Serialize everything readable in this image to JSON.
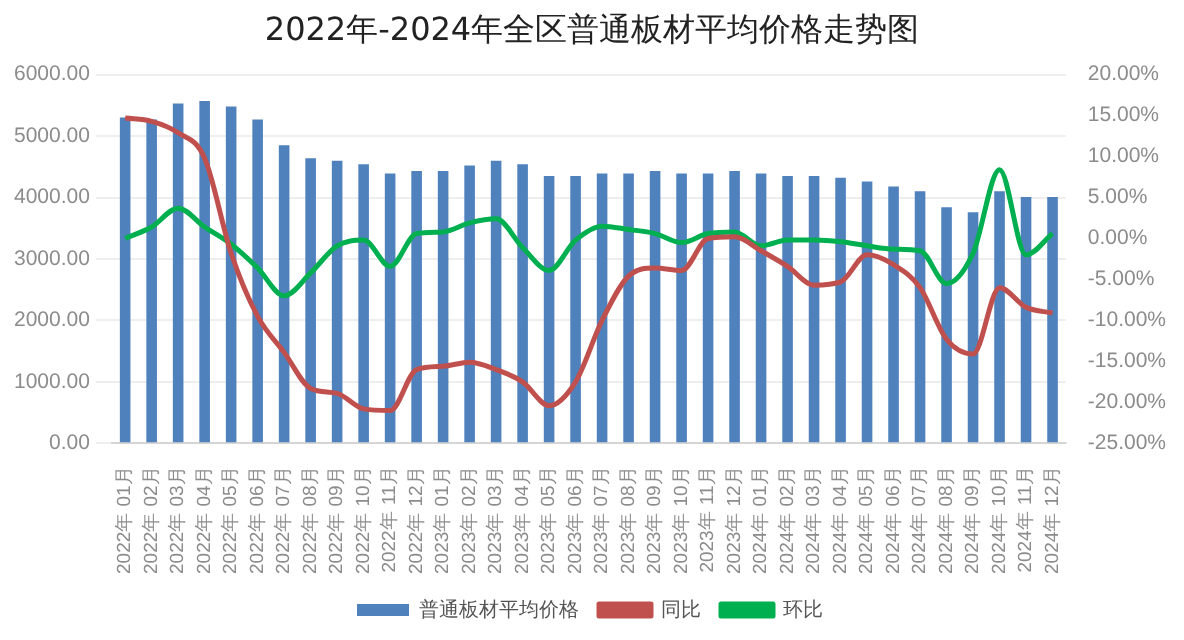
{
  "chart_data": {
    "type": "bar",
    "title": "2022年-2024年全区普通板材平均价格走势图",
    "categories": [
      "2022年 01月",
      "2022年 02月",
      "2022年 03月",
      "2022年 04月",
      "2022年 05月",
      "2022年 06月",
      "2022年 07月",
      "2022年 08月",
      "2022年 09月",
      "2022年 10月",
      "2022年 11月",
      "2022年 12月",
      "2023年 01月",
      "2023年 02月",
      "2023年 03月",
      "2023年 04月",
      "2023年 05月",
      "2023年 06月",
      "2023年 07月",
      "2023年 08月",
      "2023年 09月",
      "2023年 10月",
      "2023年 11月",
      "2023年 12月",
      "2024年 01月",
      "2024年 02月",
      "2024年 03月",
      "2024年 04月",
      "2024年 05月",
      "2024年 06月",
      "2024年 07月",
      "2024年 08月",
      "2024年 09月",
      "2024年 10月",
      "2024年 11月",
      "2024年 12月"
    ],
    "series": [
      {
        "name": "普通板材平均价格",
        "color": "#4f81bd",
        "values": [
          5300,
          5270,
          5530,
          5570,
          5480,
          5270,
          4850,
          4640,
          4600,
          4540,
          4390,
          4430,
          4430,
          4520,
          4600,
          4540,
          4350,
          4350,
          4390,
          4390,
          4430,
          4390,
          4390,
          4430,
          4390,
          4350,
          4350,
          4320,
          4260,
          4180,
          4100,
          3840,
          3760,
          4100,
          4010,
          4010
        ]
      },
      {
        "name": "同比",
        "type": "line",
        "axis": "y2",
        "color": "#c0504d",
        "values": [
          14.7,
          14.3,
          12.9,
          9.8,
          -1.8,
          -9.5,
          -13.9,
          -18.3,
          -18.9,
          -20.8,
          -21.0,
          -16.0,
          -15.6,
          -15.1,
          -16.0,
          -17.5,
          -20.4,
          -17.5,
          -10.0,
          -4.6,
          -3.6,
          -3.9,
          0.0,
          0.2,
          -1.5,
          -3.4,
          -5.7,
          -5.3,
          -2.0,
          -3.2,
          -6.0,
          -12.3,
          -14.1,
          -6.0,
          -8.4,
          -9.1
        ]
      },
      {
        "name": "环比",
        "type": "line",
        "axis": "y2",
        "color": "#00b050",
        "values": [
          0.0,
          1.4,
          3.7,
          1.4,
          -0.7,
          -3.6,
          -7.0,
          -4.2,
          -0.9,
          -0.2,
          -3.4,
          0.6,
          0.8,
          1.9,
          2.4,
          -1.1,
          -3.9,
          -0.2,
          1.5,
          1.1,
          0.6,
          -0.5,
          0.6,
          0.8,
          -0.9,
          -0.2,
          -0.2,
          -0.4,
          -0.9,
          -1.3,
          -1.5,
          -5.5,
          -1.8,
          8.4,
          -2.0,
          0.6
        ]
      }
    ],
    "ylim": [
      0,
      6000
    ],
    "yticks": [
      {
        "value": 0,
        "label": "0.00"
      },
      {
        "value": 1000,
        "label": "1000.00"
      },
      {
        "value": 2000,
        "label": "2000.00"
      },
      {
        "value": 3000,
        "label": "3000.00"
      },
      {
        "value": 4000,
        "label": "4000.00"
      },
      {
        "value": 5000,
        "label": "5000.00"
      },
      {
        "value": 6000,
        "label": "6000.00"
      }
    ],
    "y2lim": [
      -25,
      20
    ],
    "y2ticks": [
      {
        "value": -25,
        "label": "-25.00%"
      },
      {
        "value": -20,
        "label": "-20.00%"
      },
      {
        "value": -15,
        "label": "-15.00%"
      },
      {
        "value": -10,
        "label": "-10.00%"
      },
      {
        "value": -5,
        "label": "-5.00%"
      },
      {
        "value": 0,
        "label": "0.00%"
      },
      {
        "value": 5,
        "label": "5.00%"
      },
      {
        "value": 10,
        "label": "10.00%"
      },
      {
        "value": 15,
        "label": "15.00%"
      },
      {
        "value": 20,
        "label": "20.00%"
      }
    ],
    "grid": "y",
    "legend": "bottom",
    "marker": "none",
    "line_style": "solid"
  }
}
